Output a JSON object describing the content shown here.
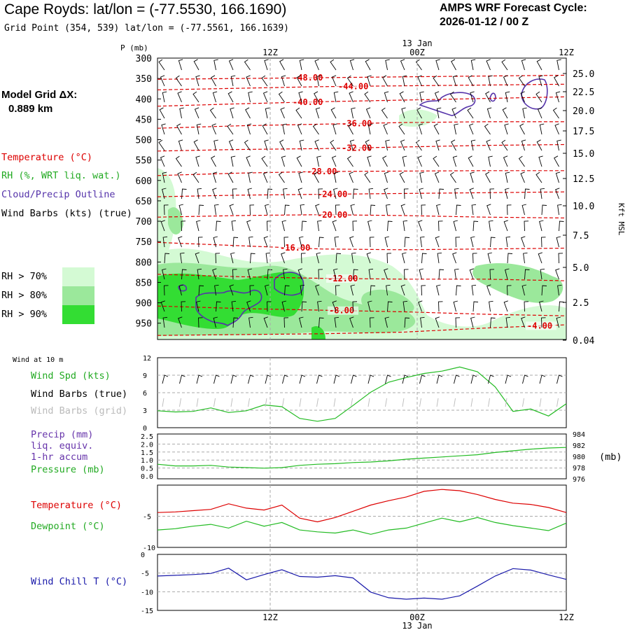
{
  "header": {
    "title": "Cape Royds:  lat/lon = (-77.5530, 166.1690)",
    "subtitle": "Grid Point (354, 539) lat/lon = (-77.5561, 166.1639)",
    "cycle_line1": "AMPS WRF Forecast Cycle:",
    "cycle_line2": "2026-01-12 / 00  Z",
    "model_grid_label": "Model Grid ΔX:",
    "model_grid_value": "0.889 km"
  },
  "time_axis": {
    "top_ticks": [
      "12Z",
      "00Z",
      "12Z"
    ],
    "date_label": "13 Jan",
    "bottom_ticks": [
      "12Z",
      "00Z",
      "12Z"
    ]
  },
  "legend": {
    "temperature": "Temperature (°C)",
    "rh": "RH (%, WRT liq. wat.)",
    "cloud": "Cloud/Precip Outline",
    "wind": "Wind Barbs (kts) (true)",
    "rh70": "RH > 70%",
    "rh80": "RH > 80%",
    "rh90": "RH > 90%",
    "rh_colors": [
      "#d4fad4",
      "#9be89b",
      "#33dd33"
    ],
    "temp_color": "#dd0000",
    "cloud_color": "#5533aa",
    "wind_label_10m": "Wind at 10 m",
    "wind_spd": "Wind Spd (kts)",
    "wind_barbs_true": "Wind Barbs (true)",
    "wind_barbs_grid": "Wind Barbs (grid)",
    "precip1": "Precip (mm)",
    "precip2": "liq. equiv.",
    "precip3": "1-hr accum",
    "pressure": "Pressure (mb)",
    "pressure_unit": "(mb)",
    "temp2": "Temperature (°C)",
    "dewpoint": "Dewpoint (°C)",
    "windchill": "Wind Chill T (°C)"
  },
  "chart_data": [
    {
      "type": "contour",
      "name": "cross_section",
      "ylabel": "P (mb)",
      "right_label": "Kft MSL",
      "pressure_ticks": [
        300,
        350,
        400,
        450,
        500,
        550,
        600,
        650,
        700,
        750,
        800,
        850,
        900,
        950
      ],
      "height_ticks": [
        "25.0",
        "22.5",
        "20.0",
        "17.5",
        "15.0",
        "12.5",
        "10.0",
        "7.5",
        "5.0",
        "2.5",
        "0.04"
      ],
      "isotherms": [
        {
          "value": -48,
          "label": "-48.00",
          "p": [
            352,
            350,
            348,
            346,
            344,
            342
          ]
        },
        {
          "value": -44,
          "label": "-44.00",
          "p": [
            378,
            374,
            370,
            368,
            366,
            364
          ]
        },
        {
          "value": -40,
          "label": "-40.00",
          "p": [
            418,
            412,
            407,
            403,
            399,
            395
          ]
        },
        {
          "value": -36,
          "label": "-36.00",
          "p": [
            472,
            466,
            462,
            458,
            456,
            456
          ]
        },
        {
          "value": -32,
          "label": "-32.00",
          "p": [
            528,
            524,
            522,
            518,
            514,
            512
          ]
        },
        {
          "value": -28,
          "label": "-28.00",
          "p": [
            588,
            582,
            578,
            577,
            576,
            576
          ]
        },
        {
          "value": -24,
          "label": "-24.00",
          "p": [
            640,
            636,
            634,
            632,
            630,
            628
          ]
        },
        {
          "value": -20,
          "label": "-20.00",
          "p": [
            690,
            686,
            684,
            686,
            690,
            692
          ]
        },
        {
          "value": -16,
          "label": "-16.00",
          "p": [
            752,
            760,
            768,
            770,
            768,
            766
          ]
        },
        {
          "value": -12,
          "label": "-12.00",
          "p": [
            830,
            836,
            840,
            842,
            842,
            846
          ]
        },
        {
          "value": -8,
          "label": "-8.00",
          "p": [
            908,
            914,
            918,
            922,
            928,
            932
          ]
        },
        {
          "value": -4,
          "label": "-4.00",
          "p": [
            980,
            978,
            976,
            972,
            962,
            954
          ]
        }
      ]
    },
    {
      "type": "line",
      "name": "wind_speed",
      "ylabel": "Wind Spd (kts)",
      "y_ticks": [
        0,
        3,
        6,
        9,
        12
      ],
      "ylim": [
        0,
        12
      ],
      "values": [
        2.9,
        2.7,
        2.8,
        3.4,
        2.6,
        2.9,
        3.9,
        3.6,
        1.6,
        1.1,
        1.6,
        3.8,
        6.1,
        7.8,
        8.6,
        9.3,
        9.7,
        10.4,
        9.6,
        7.0,
        2.8,
        3.2,
        2.0,
        4.1
      ]
    },
    {
      "type": "line",
      "name": "pressure",
      "ylabel": "Pressure (mb)",
      "left_ticks": [
        "2.5",
        "2.0",
        "1.5",
        "1.0",
        "0.5",
        "0.0"
      ],
      "right_ticks": [
        984,
        982,
        980,
        978,
        976
      ],
      "ylim": [
        976,
        984
      ],
      "values": [
        978.6,
        978.3,
        978.3,
        978.4,
        978.1,
        978.0,
        977.9,
        978.0,
        978.4,
        978.6,
        978.7,
        978.9,
        979.0,
        979.2,
        979.5,
        979.7,
        979.9,
        980.1,
        980.3,
        980.7,
        981.0,
        981.3,
        981.5,
        981.6
      ]
    },
    {
      "type": "line",
      "name": "temperature_dewpoint",
      "y_ticks": [
        -5,
        -10
      ],
      "ylim": [
        -10,
        0
      ],
      "series": [
        {
          "name": "Temperature",
          "color": "#dd0000",
          "values": [
            -4.4,
            -4.3,
            -4.1,
            -3.9,
            -3.0,
            -3.7,
            -4.0,
            -3.2,
            -5.3,
            -5.9,
            -5.2,
            -4.2,
            -3.2,
            -2.5,
            -1.9,
            -1.0,
            -0.7,
            -0.9,
            -1.5,
            -2.3,
            -2.9,
            -3.1,
            -3.6,
            -4.4
          ]
        },
        {
          "name": "Dewpoint",
          "color": "#22bb22",
          "values": [
            -7.2,
            -7.0,
            -6.6,
            -6.3,
            -6.9,
            -5.8,
            -6.6,
            -6.0,
            -7.2,
            -7.5,
            -7.7,
            -7.2,
            -7.9,
            -7.2,
            -6.9,
            -6.1,
            -5.3,
            -5.9,
            -5.2,
            -6.0,
            -6.5,
            -6.9,
            -7.3,
            -6.1
          ]
        }
      ]
    },
    {
      "type": "line",
      "name": "wind_chill",
      "ylabel": "Wind Chill T (°C)",
      "y_ticks": [
        0,
        -5,
        -10,
        -15
      ],
      "ylim": [
        -15,
        0
      ],
      "color": "#1a1aaa",
      "values": [
        -5.8,
        -5.6,
        -5.4,
        -5.1,
        -3.7,
        -6.8,
        -5.4,
        -4.1,
        -5.9,
        -6.1,
        -5.7,
        -6.3,
        -10.1,
        -11.6,
        -12.0,
        -11.7,
        -12.0,
        -11.1,
        -8.5,
        -5.8,
        -3.8,
        -4.2,
        -5.5,
        -6.7
      ]
    }
  ]
}
